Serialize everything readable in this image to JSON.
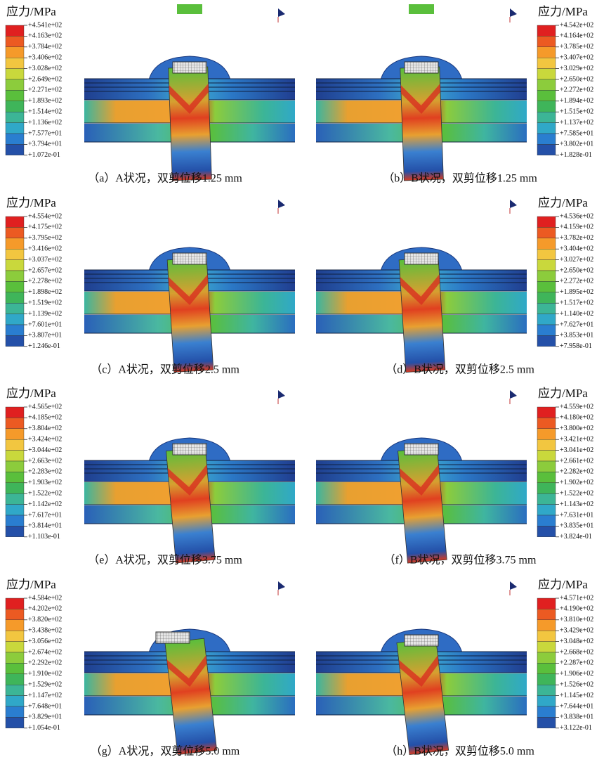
{
  "panels": [
    {
      "legend_title": "应力/MPa",
      "legend_labels": [
        "+4.541e+02",
        "+4.163e+02",
        "+3.784e+02",
        "+3.406e+02",
        "+3.028e+02",
        "+2.649e+02",
        "+2.271e+02",
        "+1.893e+02",
        "+1.514e+02",
        "+1.136e+02",
        "+7.577e+01",
        "+3.794e+01",
        "+1.072e-01"
      ],
      "caption": "（a）A状况，双剪位移1.25 mm"
    },
    {
      "legend_title": "应力/MPa",
      "legend_labels": [
        "+4.542e+02",
        "+4.164e+02",
        "+3.785e+02",
        "+3.407e+02",
        "+3.029e+02",
        "+2.650e+02",
        "+2.272e+02",
        "+1.894e+02",
        "+1.515e+02",
        "+1.137e+02",
        "+7.585e+01",
        "+3.802e+01",
        "+1.828e-01"
      ],
      "caption": "（b）B状况，双剪位移1.25 mm"
    },
    {
      "legend_title": "应力/MPa",
      "legend_labels": [
        "+4.554e+02",
        "+4.175e+02",
        "+3.795e+02",
        "+3.416e+02",
        "+3.037e+02",
        "+2.657e+02",
        "+2.278e+02",
        "+1.898e+02",
        "+1.519e+02",
        "+1.139e+02",
        "+7.601e+01",
        "+3.807e+01",
        "+1.246e-01"
      ],
      "caption": "（c）A状况，双剪位移2.5 mm"
    },
    {
      "legend_title": "应力/MPa",
      "legend_labels": [
        "+4.536e+02",
        "+4.159e+02",
        "+3.782e+02",
        "+3.404e+02",
        "+3.027e+02",
        "+2.650e+02",
        "+2.272e+02",
        "+1.895e+02",
        "+1.517e+02",
        "+1.140e+02",
        "+7.627e+01",
        "+3.853e+01",
        "+7.958e-01"
      ],
      "caption": "（d）B状况，双剪位移2.5 mm"
    },
    {
      "legend_title": "应力/MPa",
      "legend_labels": [
        "+4.565e+02",
        "+4.185e+02",
        "+3.804e+02",
        "+3.424e+02",
        "+3.044e+02",
        "+2.663e+02",
        "+2.283e+02",
        "+1.903e+02",
        "+1.522e+02",
        "+1.142e+02",
        "+7.617e+01",
        "+3.814e+01",
        "+1.103e-01"
      ],
      "caption": "（e）A状况，双剪位移3.75 mm"
    },
    {
      "legend_title": "应力/MPa",
      "legend_labels": [
        "+4.559e+02",
        "+4.180e+02",
        "+3.800e+02",
        "+3.421e+02",
        "+3.041e+02",
        "+2.661e+02",
        "+2.282e+02",
        "+1.902e+02",
        "+1.522e+02",
        "+1.143e+02",
        "+7.631e+01",
        "+3.835e+01",
        "+3.824e-01"
      ],
      "caption": "（f）B状况，双剪位移3.75 mm"
    },
    {
      "legend_title": "应力/MPa",
      "legend_labels": [
        "+4.584e+02",
        "+4.202e+02",
        "+3.820e+02",
        "+3.438e+02",
        "+3.056e+02",
        "+2.674e+02",
        "+2.292e+02",
        "+1.910e+02",
        "+1.529e+02",
        "+1.147e+02",
        "+7.648e+01",
        "+3.829e+01",
        "+1.054e-01"
      ],
      "caption": "（g）A状况，双剪位移5.0 mm"
    },
    {
      "legend_title": "应力/MPa",
      "legend_labels": [
        "+4.571e+02",
        "+4.190e+02",
        "+3.810e+02",
        "+3.429e+02",
        "+3.048e+02",
        "+2.668e+02",
        "+2.287e+02",
        "+1.906e+02",
        "+1.526e+02",
        "+1.145e+02",
        "+7.644e+01",
        "+3.838e+01",
        "+3.122e-01"
      ],
      "caption": "（h）B状况，双剪位移5.0 mm"
    }
  ]
}
